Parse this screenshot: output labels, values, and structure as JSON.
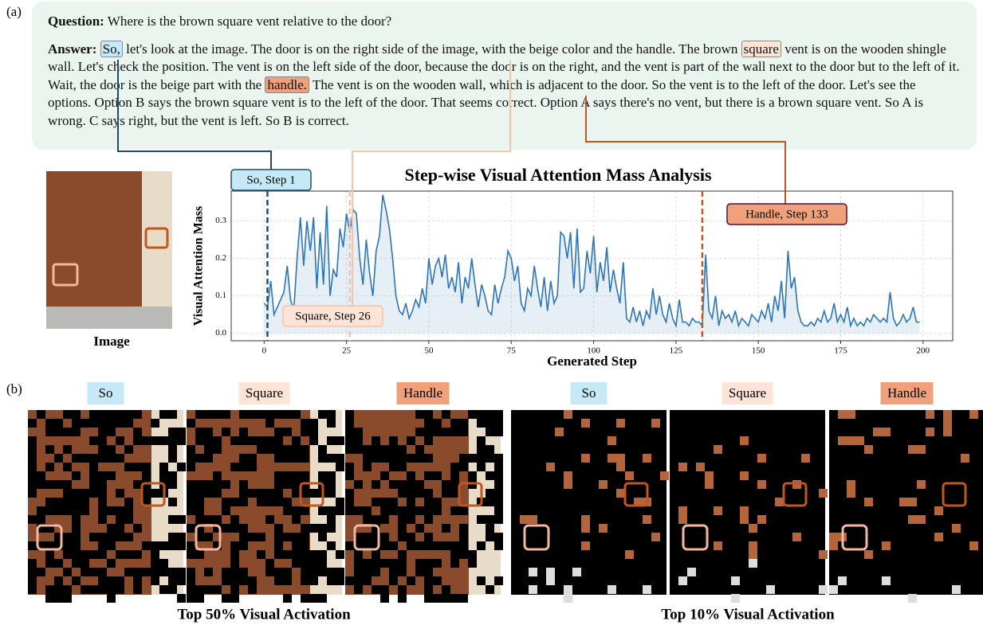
{
  "panel_a_label": "(a)",
  "panel_b_label": "(b)",
  "question": {
    "prefix": "Question:",
    "text": "Where is the brown square vent relative to the door?"
  },
  "answer": {
    "prefix": "Answer:",
    "segments": [
      "So,",
      " let's look at the image. The door is on the right side of the image, with the beige color and the handle. The brown ",
      "square",
      " vent is on the wooden shingle wall. Let's check the position. The vent is on the left side of the door, because the door is on the right, and the vent is part of the wall next to the door but to the left of it. Wait, the door is the beige part with the ",
      "handle.",
      " The vent is on the wooden wall, which is adjacent to the door. So the vent is to the left of the door. Let's see the options. Option B says the brown square vent is to the left of the door. That seems correct. Option A says there's no vent, but there is a brown square vent. So A is wrong. C says right, but the vent is left. So B is correct."
    ]
  },
  "image_label": "Image",
  "chart_data": {
    "type": "line",
    "title": "Step-wise Visual Attention Mass Analysis",
    "x_label": "Generated Step",
    "y_label": "Visual Attention Mass",
    "grid": true,
    "xlim": [
      -10,
      209
    ],
    "ylim": [
      -0.02,
      0.38
    ],
    "xticks": [
      0,
      25,
      50,
      75,
      100,
      125,
      150,
      175,
      200
    ],
    "yticks": [
      {
        "value": 0,
        "label": "0.0"
      },
      0.1,
      0.2,
      0.3
    ],
    "annotations": [
      {
        "label": "So, Step 1",
        "step": 1,
        "color": "#1f4e6b"
      },
      {
        "label": "Square, Step 26",
        "step": 26,
        "color": "#f6c3a6"
      },
      {
        "label": "Handle, Step 133",
        "step": 133,
        "color": "#c2561f"
      }
    ],
    "x": [
      0,
      1,
      2,
      3,
      4,
      5,
      6,
      7,
      8,
      9,
      10,
      11,
      12,
      13,
      14,
      15,
      16,
      17,
      18,
      19,
      20,
      21,
      22,
      23,
      24,
      25,
      26,
      27,
      28,
      29,
      30,
      31,
      32,
      33,
      34,
      35,
      36,
      37,
      38,
      39,
      40,
      41,
      42,
      43,
      44,
      45,
      46,
      47,
      48,
      49,
      50,
      51,
      52,
      53,
      54,
      55,
      56,
      57,
      58,
      59,
      60,
      61,
      62,
      63,
      64,
      65,
      66,
      67,
      68,
      69,
      70,
      71,
      72,
      73,
      74,
      75,
      76,
      77,
      78,
      79,
      80,
      81,
      82,
      83,
      84,
      85,
      86,
      87,
      88,
      89,
      90,
      91,
      92,
      93,
      94,
      95,
      96,
      97,
      98,
      99,
      100,
      101,
      102,
      103,
      104,
      105,
      106,
      107,
      108,
      109,
      110,
      111,
      112,
      113,
      114,
      115,
      116,
      117,
      118,
      119,
      120,
      121,
      122,
      123,
      124,
      125,
      126,
      127,
      128,
      129,
      130,
      131,
      132,
      133,
      134,
      135,
      136,
      137,
      138,
      139,
      140,
      141,
      142,
      143,
      144,
      145,
      146,
      147,
      148,
      149,
      150,
      151,
      152,
      153,
      154,
      155,
      156,
      157,
      158,
      159,
      160,
      161,
      162,
      163,
      164,
      165,
      166,
      167,
      168,
      169,
      170,
      171,
      172,
      173,
      174,
      175,
      176,
      177,
      178,
      179,
      180,
      181,
      182,
      183,
      184,
      185,
      186,
      187,
      188,
      189,
      190,
      191,
      192,
      193,
      194,
      195,
      196,
      197,
      198,
      199
    ],
    "series": [
      {
        "color": "#2e75b6",
        "values": [
          0.08,
          0.07,
          0.14,
          0.05,
          0.07,
          0.09,
          0.11,
          0.18,
          0.09,
          0.06,
          0.2,
          0.31,
          0.18,
          0.3,
          0.22,
          0.31,
          0.12,
          0.27,
          0.13,
          0.34,
          0.1,
          0.17,
          0.15,
          0.28,
          0.23,
          0.32,
          0.27,
          0.33,
          0.32,
          0.2,
          0.13,
          0.25,
          0.16,
          0.1,
          0.22,
          0.26,
          0.37,
          0.33,
          0.28,
          0.2,
          0.1,
          0.06,
          0.05,
          0.08,
          0.04,
          0.06,
          0.09,
          0.07,
          0.12,
          0.08,
          0.2,
          0.13,
          0.18,
          0.2,
          0.15,
          0.21,
          0.12,
          0.15,
          0.11,
          0.19,
          0.08,
          0.15,
          0.12,
          0.2,
          0.13,
          0.07,
          0.13,
          0.1,
          0.06,
          0.05,
          0.13,
          0.08,
          0.12,
          0.15,
          0.22,
          0.2,
          0.14,
          0.18,
          0.08,
          0.06,
          0.12,
          0.1,
          0.18,
          0.12,
          0.07,
          0.15,
          0.06,
          0.14,
          0.08,
          0.1,
          0.27,
          0.26,
          0.2,
          0.27,
          0.12,
          0.28,
          0.11,
          0.12,
          0.22,
          0.16,
          0.26,
          0.11,
          0.19,
          0.14,
          0.23,
          0.11,
          0.17,
          0.12,
          0.08,
          0.19,
          0.04,
          0.03,
          0.07,
          0.03,
          0.06,
          0.02,
          0.06,
          0.04,
          0.12,
          0.05,
          0.1,
          0.05,
          0.03,
          0.08,
          0.04,
          0.02,
          0.09,
          0.03,
          0.03,
          0.02,
          0.04,
          0.03,
          0.03,
          0.02,
          0.21,
          0.06,
          0.04,
          0.1,
          0.02,
          0.06,
          0.04,
          0.05,
          0.03,
          0.06,
          0.02,
          0.04,
          0.03,
          0.02,
          0.05,
          0.04,
          0.03,
          0.06,
          0.04,
          0.08,
          0.03,
          0.1,
          0.06,
          0.14,
          0.04,
          0.22,
          0.12,
          0.15,
          0.06,
          0.03,
          0.02,
          0.02,
          0.03,
          0.02,
          0.04,
          0.03,
          0.06,
          0.03,
          0.04,
          0.08,
          0.03,
          0.05,
          0.03,
          0.07,
          0.02,
          0.04,
          0.02,
          0.03,
          0.02,
          0.04,
          0.03,
          0.05,
          0.04,
          0.03,
          0.04,
          0.03,
          0.11,
          0.04,
          0.02,
          0.03,
          0.05,
          0.03,
          0.04,
          0.07,
          0.03,
          0.03
        ]
      }
    ]
  },
  "activation": {
    "tokens": [
      "So",
      "Square",
      "Handle",
      "So",
      "Square",
      "Handle"
    ],
    "captions": [
      "Top 50% Visual Activation",
      "Top 10% Visual Activation"
    ]
  }
}
